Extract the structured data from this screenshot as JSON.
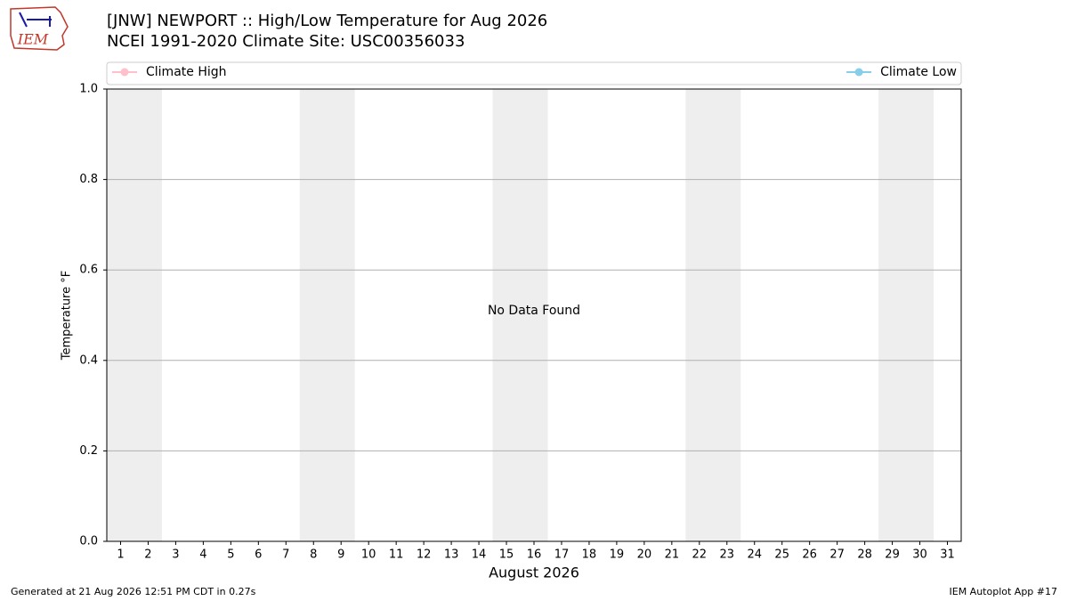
{
  "logo_text": "IEM",
  "footer_left": "Generated at 21 Aug 2026 12:51 PM CDT in 0.27s",
  "footer_right": "IEM Autoplot App #17",
  "chart_data": {
    "type": "line",
    "title": "[JNW] NEWPORT :: High/Low Temperature for Aug 2026",
    "subtitle": "NCEI 1991-2020 Climate Site: USC00356033",
    "ylabel": "Temperature °F",
    "xlabel": "August 2026",
    "annotation": "No Data Found",
    "xlim": [
      0.5,
      31.5
    ],
    "xticks": [
      1,
      2,
      3,
      4,
      5,
      6,
      7,
      8,
      9,
      10,
      11,
      12,
      13,
      14,
      15,
      16,
      17,
      18,
      19,
      20,
      21,
      22,
      23,
      24,
      25,
      26,
      27,
      28,
      29,
      30,
      31
    ],
    "ylim": [
      0,
      1
    ],
    "yticks": [
      {
        "value": 0,
        "label": "0.0"
      },
      0.2,
      0.4,
      0.6,
      0.8,
      {
        "value": 1,
        "label": "1.0"
      }
    ],
    "grid": true,
    "shaded_ranges": [
      [
        1,
        2
      ],
      [
        8,
        9
      ],
      [
        15,
        16
      ],
      [
        22,
        23
      ],
      [
        29,
        30
      ]
    ],
    "shade_color": "#eeeeee",
    "series": [
      {
        "name": "Climate High",
        "color": "#ffc0cb",
        "x": [],
        "values": []
      },
      {
        "name": "Climate Low",
        "color": "#87ceeb",
        "x": [],
        "values": []
      }
    ]
  }
}
